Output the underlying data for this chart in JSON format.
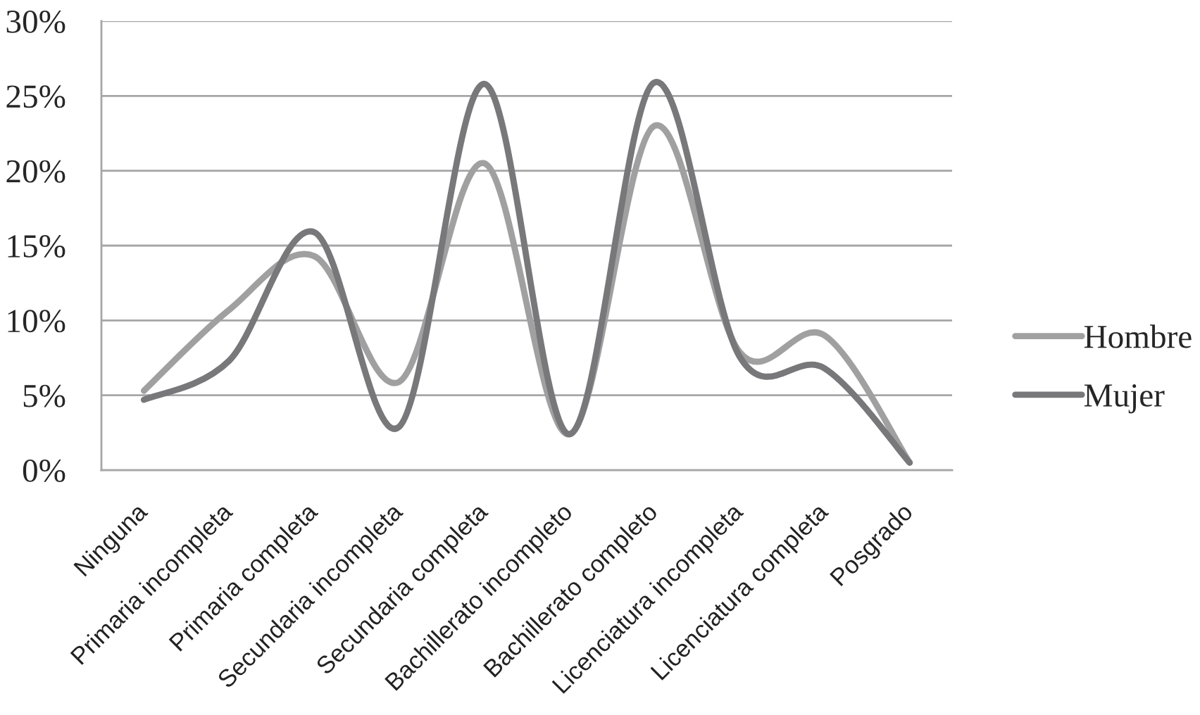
{
  "chart_data": {
    "type": "line",
    "categories": [
      "Ninguna",
      "Primaria incompleta",
      "Primaria completa",
      "Secundaria incompleta",
      "Secundaria completa",
      "Bachillerato incompleto",
      "Bachillerato completo",
      "Licenciatura incompleta",
      "Licenciatura completa",
      "Posgrado"
    ],
    "series": [
      {
        "name": "Hombre",
        "color": "#a0a0a0",
        "values": [
          5.3,
          10.7,
          14.3,
          5.9,
          20.5,
          2.4,
          23.0,
          7.9,
          9.0,
          0.5
        ]
      },
      {
        "name": "Mujer",
        "color": "#78787b",
        "values": [
          4.7,
          7.3,
          15.9,
          2.9,
          25.8,
          2.4,
          25.9,
          7.6,
          6.8,
          0.5
        ]
      }
    ],
    "ylim": [
      0,
      30
    ],
    "yticks": [
      {
        "value": 0,
        "label": "0%"
      },
      {
        "value": 5,
        "label": "5%"
      },
      {
        "value": 10,
        "label": "10%"
      },
      {
        "value": 15,
        "label": "15%"
      },
      {
        "value": 20,
        "label": "20%"
      },
      {
        "value": 25,
        "label": "25%"
      },
      {
        "value": 30,
        "label": "30%"
      }
    ],
    "grid": "y",
    "legend": "right",
    "marker": "none",
    "line_style": "solid"
  }
}
